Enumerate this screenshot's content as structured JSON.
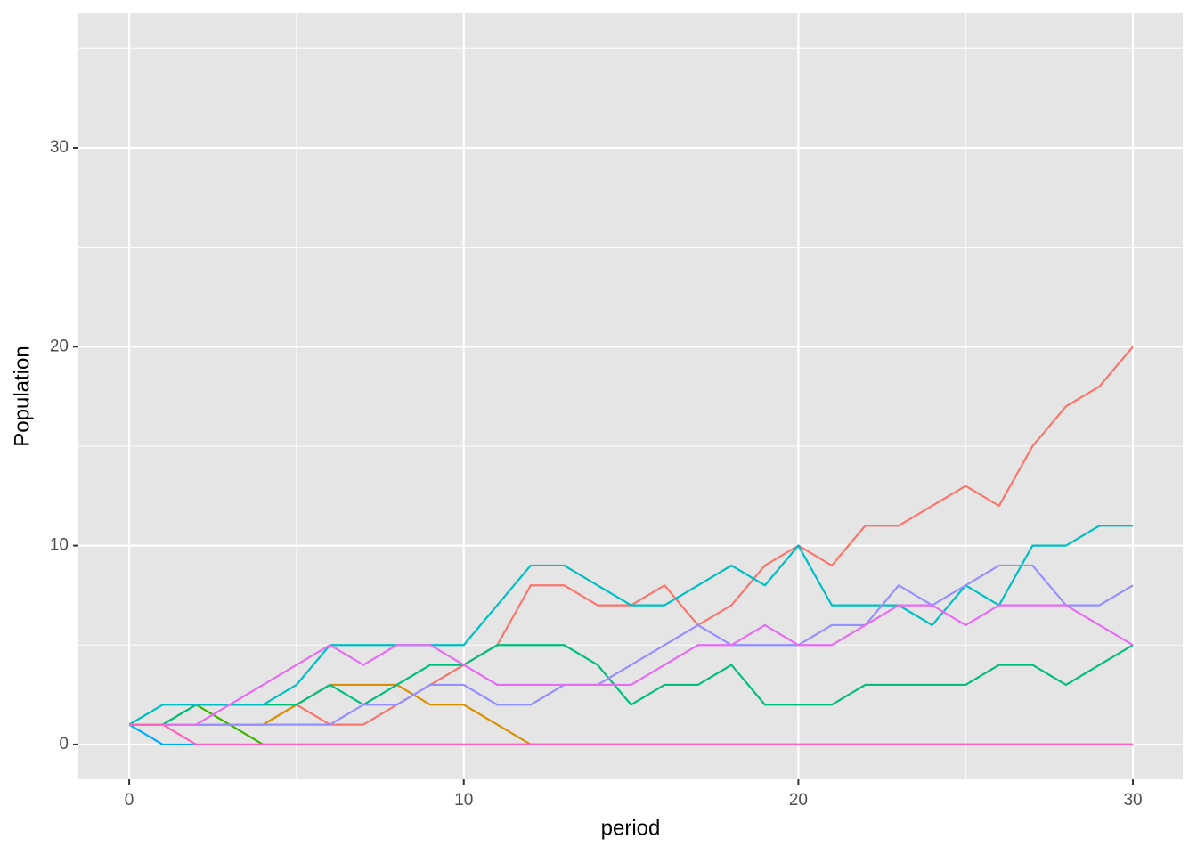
{
  "chart_data": {
    "type": "line",
    "x_label": "period",
    "y_label": "Population",
    "x": [
      0,
      1,
      2,
      3,
      4,
      5,
      6,
      7,
      8,
      9,
      10,
      11,
      12,
      13,
      14,
      15,
      16,
      17,
      18,
      19,
      20,
      21,
      22,
      23,
      24,
      25,
      26,
      27,
      28,
      29,
      30
    ],
    "xlim": [
      -1.52,
      31.49
    ],
    "xticks": [
      0,
      10,
      20,
      30
    ],
    "ylim": [
      -1.75,
      36.76
    ],
    "yticks": [
      0,
      10,
      20,
      30
    ],
    "grid": true,
    "series": [
      {
        "color": "#F8766D",
        "values": [
          1,
          1,
          1,
          1,
          1,
          2,
          1,
          1,
          2,
          3,
          4,
          5,
          8,
          8,
          7,
          7,
          8,
          6,
          7,
          9,
          10,
          9,
          11,
          11,
          12,
          13,
          12,
          15,
          17,
          18,
          20
        ]
      },
      {
        "color": "#D89000",
        "values": [
          1,
          1,
          1,
          1,
          1,
          2,
          3,
          3,
          3,
          2,
          2,
          1,
          0,
          0,
          0,
          0,
          0,
          0,
          0,
          0,
          0,
          0,
          0,
          0,
          0,
          0,
          0,
          0,
          0,
          0,
          0
        ]
      },
      {
        "color": "#39B600",
        "values": [
          1,
          1,
          2,
          1,
          0,
          0,
          0,
          0,
          0,
          0,
          0,
          0,
          0,
          0,
          0,
          0,
          0,
          0,
          0,
          0,
          0,
          0,
          0,
          0,
          0,
          0,
          0,
          0,
          0,
          0,
          0
        ]
      },
      {
        "color": "#00BF7D",
        "values": [
          1,
          1,
          2,
          2,
          2,
          2,
          3,
          2,
          3,
          4,
          4,
          5,
          5,
          5,
          4,
          2,
          3,
          3,
          4,
          2,
          2,
          2,
          3,
          3,
          3,
          3,
          4,
          4,
          3,
          4,
          5
        ]
      },
      {
        "color": "#00BFC4",
        "values": [
          1,
          2,
          2,
          2,
          2,
          3,
          5,
          5,
          5,
          5,
          5,
          7,
          9,
          9,
          8,
          7,
          7,
          8,
          9,
          8,
          10,
          7,
          7,
          7,
          6,
          8,
          7,
          10,
          10,
          11,
          11
        ]
      },
      {
        "color": "#00A9FF",
        "values": [
          1,
          0,
          0,
          0,
          0,
          0,
          0,
          0,
          0,
          0,
          0,
          0,
          0,
          0,
          0,
          0,
          0,
          0,
          0,
          0,
          0,
          0,
          0,
          0,
          0,
          0,
          0,
          0,
          0,
          0,
          0
        ]
      },
      {
        "color": "#9590FF",
        "values": [
          1,
          1,
          1,
          1,
          1,
          1,
          1,
          2,
          2,
          3,
          3,
          2,
          2,
          3,
          3,
          4,
          5,
          6,
          5,
          5,
          5,
          6,
          6,
          8,
          7,
          8,
          9,
          9,
          7,
          7,
          8
        ]
      },
      {
        "color": "#E76BF3",
        "values": [
          1,
          1,
          1,
          2,
          3,
          4,
          5,
          4,
          5,
          5,
          4,
          3,
          3,
          3,
          3,
          3,
          4,
          5,
          5,
          6,
          5,
          5,
          6,
          7,
          7,
          6,
          7,
          7,
          7,
          6,
          5
        ]
      },
      {
        "color": "#FF62BC",
        "values": [
          1,
          1,
          0,
          0,
          0,
          0,
          0,
          0,
          0,
          0,
          0,
          0,
          0,
          0,
          0,
          0,
          0,
          0,
          0,
          0,
          0,
          0,
          0,
          0,
          0,
          0,
          0,
          0,
          0,
          0,
          0
        ]
      }
    ]
  }
}
